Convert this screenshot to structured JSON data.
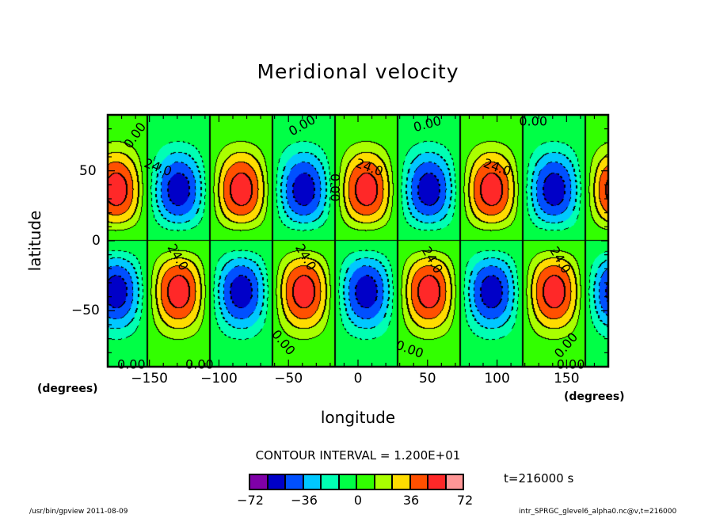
{
  "chart_data": {
    "type": "heatmap",
    "subtype": "filled-contour",
    "title": "Meridional velocity",
    "xlabel": "longitude",
    "ylabel": "latitude",
    "x_units": "(degrees)",
    "y_units": "(degrees)",
    "xlim": [
      -180,
      180
    ],
    "ylim": [
      -90,
      90
    ],
    "x_ticks": [
      -150,
      -100,
      -50,
      0,
      50,
      100,
      150
    ],
    "y_ticks": [
      50,
      0,
      -50
    ],
    "field_model": {
      "description": "zonal wavenumber-4 pattern, antisymmetric about equator",
      "wavenumber": 4,
      "phase_lon_deg": 6,
      "peak_lat_deg": 31,
      "amplitude": 80,
      "nh_positive_centers_lon": [
        -174,
        -84,
        6,
        96
      ],
      "nh_negative_centers_lon": [
        -129,
        -39,
        51,
        141
      ],
      "sh_positive_centers_lon": [
        -129,
        -39,
        51,
        141
      ],
      "sh_negative_centers_lon": [
        -174,
        -84,
        6,
        96
      ]
    },
    "contour_interval": 12,
    "contour_labels": [
      "0.00",
      "24.0"
    ],
    "colorbar": {
      "levels": [
        -72,
        -60,
        -48,
        -36,
        -24,
        -12,
        0,
        12,
        24,
        36,
        48,
        60,
        72
      ],
      "tick_labels": [
        "-72",
        "-36",
        "0",
        "36",
        "72"
      ],
      "tick_values": [
        -72,
        -36,
        0,
        36,
        72
      ],
      "colors": [
        "#7f00a8",
        "#0000c8",
        "#0050ff",
        "#00c8ff",
        "#00ffb4",
        "#00ff46",
        "#32ff00",
        "#aaff00",
        "#ffdc00",
        "#ff5000",
        "#ff2828",
        "#ff9696"
      ]
    }
  },
  "labels": {
    "title": "Meridional velocity",
    "ylabel": "latitude",
    "xlabel": "longitude",
    "x_units": "(degrees)",
    "y_units": "(degrees)",
    "contour_interval": "CONTOUR INTERVAL = 1.200E+01",
    "time": "t=216000 s",
    "footer_left": "/usr/bin/gpview   2011-08-09",
    "footer_right": "intr_SPRGC_glevel6_alpha0.nc@v,t=216000",
    "x_tick_labels": [
      "−150",
      "−100",
      "−50",
      "0",
      "50",
      "100",
      "150"
    ],
    "y_tick_labels": [
      "50",
      "0",
      "−50"
    ],
    "cb_tick_labels": [
      "−72",
      "−36",
      "0",
      "36",
      "72"
    ]
  }
}
